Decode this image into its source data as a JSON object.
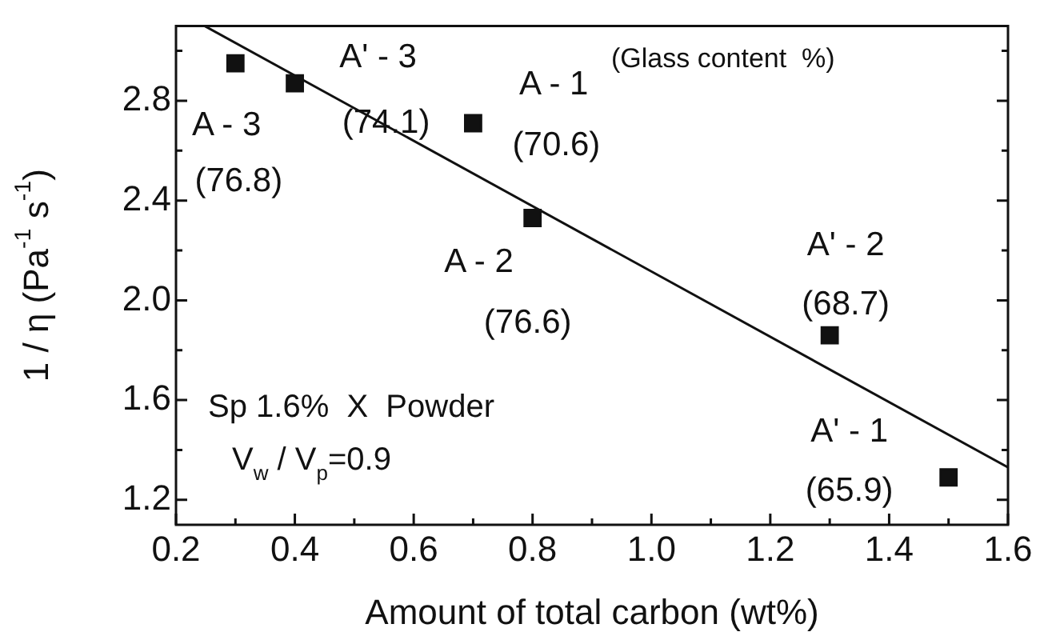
{
  "chart_data": {
    "type": "scatter",
    "xlabel": "Amount of total carbon (wt%)",
    "ylabel": "1 / η (Pa$^{-1}$ s$^{-1}$)",
    "xlim": [
      0.2,
      1.6
    ],
    "ylim": [
      1.1,
      3.1
    ],
    "xticks": [
      0.2,
      {
        "value": 0.3,
        "label": null
      },
      0.4,
      {
        "value": 0.5,
        "label": null
      },
      0.6,
      {
        "value": 0.7,
        "label": null
      },
      0.8,
      {
        "value": 0.9,
        "label": null
      },
      {
        "value": 1.0,
        "label": "1.0"
      },
      {
        "value": 1.1,
        "label": null
      },
      1.2,
      {
        "value": 1.3,
        "label": null
      },
      1.4,
      {
        "value": 1.5,
        "label": null
      },
      1.6
    ],
    "yticks": [
      1.2,
      {
        "value": 1.4,
        "label": null
      },
      1.6,
      {
        "value": 1.8,
        "label": null
      },
      {
        "value": 2.0,
        "label": "2.0"
      },
      {
        "value": 2.2,
        "label": null
      },
      2.4,
      {
        "value": 2.6,
        "label": null
      },
      2.8,
      {
        "value": 3.0,
        "label": null
      }
    ],
    "x": [
      0.3,
      0.4,
      0.7,
      0.8,
      1.3,
      1.5
    ],
    "series": [
      {
        "color": "#111111",
        "values": [
          2.95,
          2.87,
          2.71,
          2.33,
          1.86,
          1.29
        ]
      },
      {
        "type": "line",
        "color": "#111111",
        "x": [
          0.248,
          1.6
        ],
        "values": [
          3.1,
          1.33
        ],
        "marker": "none"
      }
    ],
    "annotations": [
      {
        "text": "A - 3",
        "x": 0.3,
        "y": 2.95
      },
      {
        "text": "(76.8)",
        "x": 0.3,
        "y": 2.95
      },
      {
        "text": "A' - 3",
        "x": 0.4,
        "y": 2.87
      },
      {
        "text": "(74.1)",
        "x": 0.4,
        "y": 2.87
      },
      {
        "text": "A - 1",
        "x": 0.7,
        "y": 2.71
      },
      {
        "text": "(70.6)",
        "x": 0.7,
        "y": 2.71
      },
      {
        "text": "A - 2",
        "x": 0.8,
        "y": 2.33
      },
      {
        "text": "(76.6)",
        "x": 0.8,
        "y": 2.33
      },
      {
        "text": "A' - 2",
        "x": 1.3,
        "y": 1.86
      },
      {
        "text": "(68.7)",
        "x": 1.3,
        "y": 1.86
      },
      {
        "text": "A' - 1",
        "x": 1.5,
        "y": 1.29
      },
      {
        "text": "(65.9)",
        "x": 1.5,
        "y": 1.29
      },
      "(Glass content  %)",
      "Sp 1.6%  X  Powder",
      "V$_{w}$ / V$_{p}$=0.9"
    ],
    "grid": false,
    "legend": false,
    "marker": "square"
  }
}
